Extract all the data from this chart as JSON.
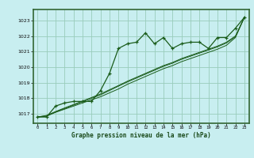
{
  "title": "Graphe pression niveau de la mer (hPa)",
  "bg_color": "#c8eef0",
  "plot_bg_color": "#c8eef0",
  "border_color": "#336633",
  "grid_color": "#99ccbb",
  "line_color": "#1a5c1a",
  "title_bg": "#336633",
  "title_fg": "#ffffff",
  "x_ticks": [
    0,
    1,
    2,
    3,
    4,
    5,
    6,
    7,
    8,
    9,
    10,
    11,
    12,
    13,
    14,
    15,
    16,
    17,
    18,
    19,
    20,
    21,
    22,
    23
  ],
  "y_ticks": [
    1017,
    1018,
    1019,
    1020,
    1021,
    1022,
    1023
  ],
  "ylim": [
    1016.4,
    1023.7
  ],
  "xlim": [
    -0.5,
    23.5
  ],
  "series": {
    "main": [
      1016.8,
      1016.8,
      1017.5,
      1017.7,
      1017.8,
      1017.8,
      1017.8,
      1018.5,
      1019.6,
      1021.2,
      1021.5,
      1021.6,
      1022.2,
      1021.5,
      1021.9,
      1021.2,
      1021.5,
      1021.6,
      1021.6,
      1021.2,
      1021.9,
      1021.9,
      1022.5,
      1023.2
    ],
    "linear1": [
      1016.8,
      1016.85,
      1017.1,
      1017.3,
      1017.5,
      1017.7,
      1017.9,
      1018.1,
      1018.35,
      1018.6,
      1018.9,
      1019.15,
      1019.4,
      1019.65,
      1019.9,
      1020.1,
      1020.35,
      1020.55,
      1020.75,
      1020.95,
      1021.15,
      1021.4,
      1021.9,
      1023.2
    ],
    "linear2": [
      1016.8,
      1016.9,
      1017.15,
      1017.38,
      1017.6,
      1017.82,
      1018.05,
      1018.28,
      1018.55,
      1018.82,
      1019.1,
      1019.35,
      1019.6,
      1019.85,
      1020.1,
      1020.3,
      1020.55,
      1020.75,
      1020.95,
      1021.15,
      1021.35,
      1021.6,
      1022.0,
      1023.2
    ],
    "linear3": [
      1016.8,
      1016.88,
      1017.12,
      1017.34,
      1017.56,
      1017.78,
      1018.0,
      1018.22,
      1018.5,
      1018.78,
      1019.05,
      1019.3,
      1019.55,
      1019.8,
      1020.05,
      1020.25,
      1020.5,
      1020.7,
      1020.9,
      1021.1,
      1021.3,
      1021.55,
      1021.95,
      1023.2
    ]
  }
}
